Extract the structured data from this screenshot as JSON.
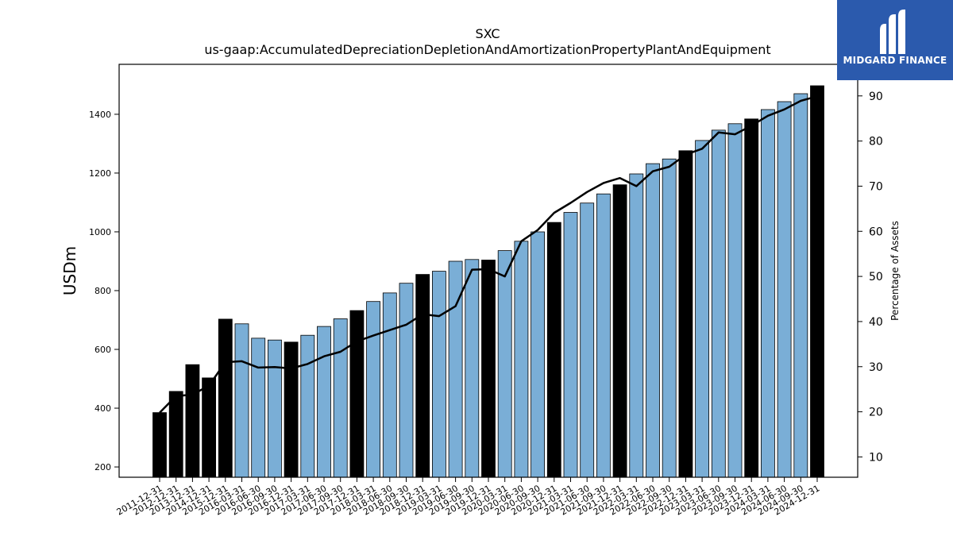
{
  "chart_data": {
    "type": "bar",
    "title": "SXC",
    "subtitle": "us-gaap:AccumulatedDepreciationDepletionAndAmortizationPropertyPlantAndEquipment",
    "ylabel": "USDm",
    "y2label": "Percentage of Assets",
    "ylim": [
      165,
      1570
    ],
    "y2lim": [
      5.5,
      97
    ],
    "yticks": [
      200,
      400,
      600,
      800,
      1000,
      1200,
      1400
    ],
    "y2ticks": [
      10,
      20,
      30,
      40,
      50,
      60,
      70,
      80,
      90
    ],
    "categories": [
      "2011-12-31",
      "2012-12-31",
      "2013-12-31",
      "2014-12-31",
      "2015-12-31",
      "2016-03-31",
      "2016-06-30",
      "2016-09-30",
      "2016-12-31",
      "2017-03-31",
      "2017-06-30",
      "2017-09-30",
      "2017-12-31",
      "2018-03-31",
      "2018-06-30",
      "2018-09-30",
      "2018-12-31",
      "2019-03-31",
      "2019-06-30",
      "2019-09-30",
      "2019-12-31",
      "2020-03-31",
      "2020-06-30",
      "2020-09-30",
      "2020-12-31",
      "2021-03-31",
      "2021-06-30",
      "2021-09-30",
      "2021-12-31",
      "2022-03-31",
      "2022-06-30",
      "2022-09-30",
      "2022-12-31",
      "2023-03-31",
      "2023-06-30",
      "2023-09-30",
      "2023-12-31",
      "2024-03-31",
      "2024-06-30",
      "2024-09-30",
      "2024-12-31"
    ],
    "series": [
      {
        "role": "bars",
        "values": [
          385,
          457,
          548,
          503,
          703,
          687,
          638,
          632,
          625,
          648,
          678,
          704,
          732,
          763,
          792,
          825,
          855,
          866,
          900,
          906,
          904,
          936,
          968,
          1000,
          1032,
          1066,
          1098,
          1129,
          1160,
          1197,
          1232,
          1248,
          1276,
          1311,
          1346,
          1368,
          1384,
          1416,
          1443,
          1470,
          1497
        ],
        "annual": [
          true,
          true,
          true,
          true,
          true,
          false,
          false,
          false,
          true,
          false,
          false,
          false,
          true,
          false,
          false,
          false,
          true,
          false,
          false,
          false,
          true,
          false,
          false,
          false,
          true,
          false,
          false,
          false,
          true,
          false,
          false,
          false,
          true,
          false,
          false,
          false,
          true,
          false,
          false,
          false,
          true
        ]
      },
      {
        "role": "line",
        "axis": "right",
        "values": [
          19.8,
          23.5,
          23.8,
          25.8,
          31.0,
          31.2,
          29.8,
          29.9,
          29.6,
          30.6,
          32.3,
          33.3,
          35.6,
          36.9,
          38.1,
          39.3,
          41.6,
          41.2,
          43.4,
          51.5,
          51.6,
          50.0,
          57.8,
          60.3,
          64.1,
          66.3,
          68.7,
          70.7,
          71.8,
          70.0,
          73.3,
          74.3,
          77.0,
          78.3,
          81.9,
          81.5,
          83.4,
          85.6,
          87.0,
          88.9,
          89.9
        ]
      }
    ],
    "grid": false,
    "colors": {
      "annual": "#000000",
      "quarterly": "#7aaed6",
      "line": "#000000"
    }
  },
  "logo": {
    "text": "MIDGARD FINANCE",
    "background": "#2b5aad"
  }
}
